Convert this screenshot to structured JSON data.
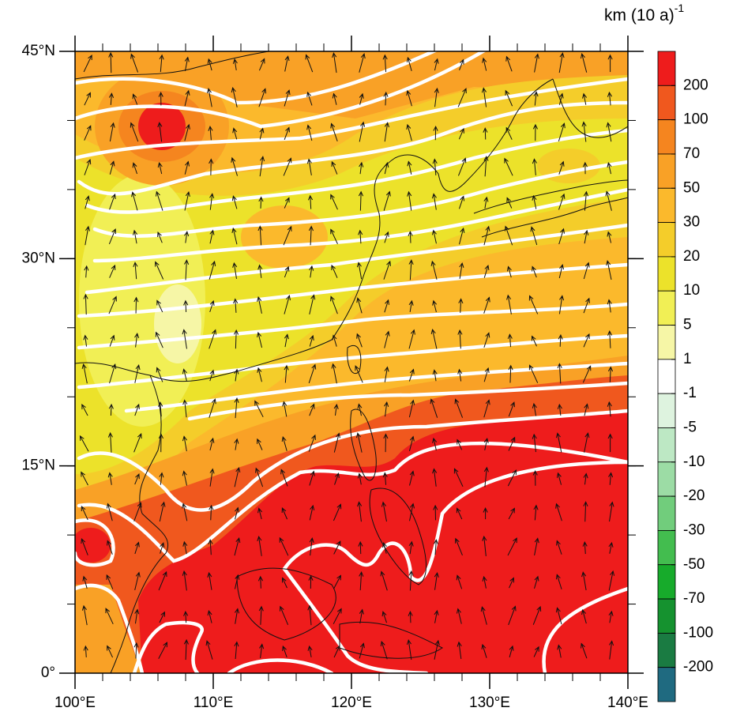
{
  "map": {
    "unit": "km (10 a)",
    "unit_exponent": "-1",
    "xlim": [
      100,
      140
    ],
    "ylim": [
      0,
      45
    ],
    "xticks": [
      {
        "value": 100,
        "label": "100°E"
      },
      {
        "value": 110,
        "label": "110°E"
      },
      {
        "value": 120,
        "label": "120°E"
      },
      {
        "value": 130,
        "label": "130°E"
      },
      {
        "value": 140,
        "label": "140°E"
      }
    ],
    "yticks": [
      {
        "value": 0,
        "label": "0°"
      },
      {
        "value": 15,
        "label": "15°N"
      },
      {
        "value": 30,
        "label": "30°N"
      },
      {
        "value": 45,
        "label": "45°N"
      }
    ],
    "colorbar": {
      "levels": [
        200,
        100,
        70,
        50,
        30,
        20,
        10,
        5,
        1,
        -1,
        -5,
        -10,
        -20,
        -30,
        -50,
        -70,
        -100,
        -200
      ],
      "colors": [
        "#ee1c1c",
        "#f0581e",
        "#f5851f",
        "#f9a126",
        "#fbb92c",
        "#f4cd2a",
        "#ece22a",
        "#f1ef55",
        "#f6f6a6",
        "#ffffff",
        "#def3df",
        "#bde8c4",
        "#9cdca5",
        "#71cd7c",
        "#43bd4f",
        "#17ab2b",
        "#15922f",
        "#1a7b42",
        "#1f6a80"
      ]
    }
  }
}
